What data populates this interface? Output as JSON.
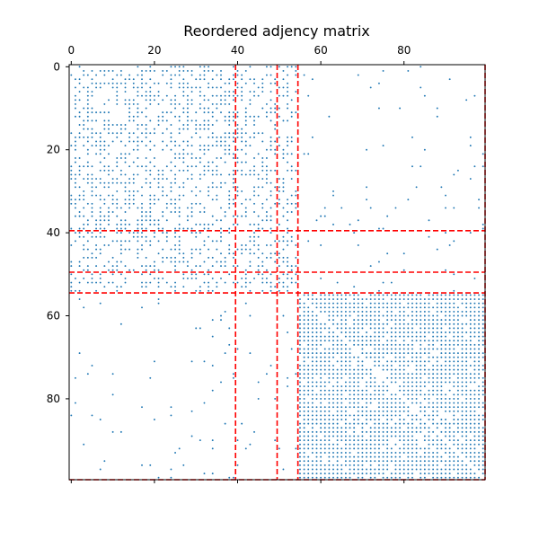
{
  "chart_data": {
    "type": "heatmap",
    "subtype": "spy-plot",
    "title": "Reordered adjency matrix",
    "x_axis": {
      "position": "top",
      "range": [
        0,
        99
      ],
      "tick_values": [
        0,
        20,
        40,
        60,
        80
      ],
      "tick_labels": [
        "0",
        "20",
        "40",
        "60",
        "80"
      ]
    },
    "y_axis": {
      "range": [
        0,
        99
      ],
      "inverted": true,
      "tick_values": [
        0,
        20,
        40,
        60,
        80
      ],
      "tick_labels": [
        "0",
        "20",
        "40",
        "60",
        "80"
      ]
    },
    "matrix_size": 100,
    "cluster_boundaries": [
      39.5,
      49.5,
      54.5,
      99.5
    ],
    "cluster_ranges": [
      [
        0,
        39
      ],
      [
        40,
        49
      ],
      [
        50,
        54
      ],
      [
        55,
        99
      ]
    ],
    "block_density_estimates": [
      [
        0.45,
        0.4,
        0.35,
        0.04
      ],
      [
        0.4,
        0.5,
        0.4,
        0.04
      ],
      [
        0.35,
        0.4,
        0.55,
        0.04
      ],
      [
        0.04,
        0.04,
        0.04,
        0.9
      ]
    ],
    "colors": {
      "marker": "#1f77b4",
      "boundary_line": "#ff0000",
      "axes": "#000000"
    },
    "boundary_style": "dashed",
    "grid": false,
    "legend": "none"
  }
}
